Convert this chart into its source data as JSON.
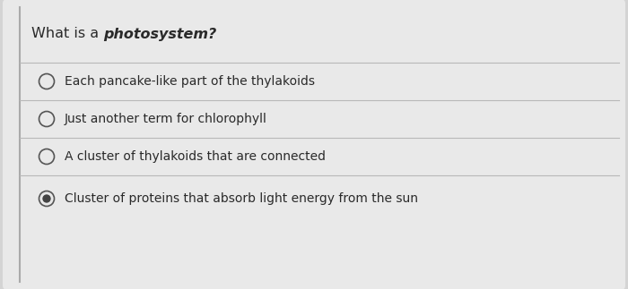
{
  "background_color": "#d4d4d4",
  "card_color": "#e9e9e9",
  "question_plain": "What is a ",
  "question_bold_italic": "photosystem?",
  "options": [
    "Each pancake-like part of the thylakoids",
    "Just another term for chlorophyll",
    "A cluster of thylakoids that are connected",
    "Cluster of proteins that absorb light energy from the sun"
  ],
  "correct_index": 3,
  "divider_color": "#b8b8b8",
  "text_color": "#2a2a2a",
  "font_size": 10.0,
  "question_font_size": 11.5,
  "radio_edge_color": "#555555",
  "selected_fill": "#444444",
  "line_color": "#c2c2c2",
  "left_border_color": "#aaaaaa",
  "fig_width": 7.0,
  "fig_height": 3.23,
  "dpi": 100
}
